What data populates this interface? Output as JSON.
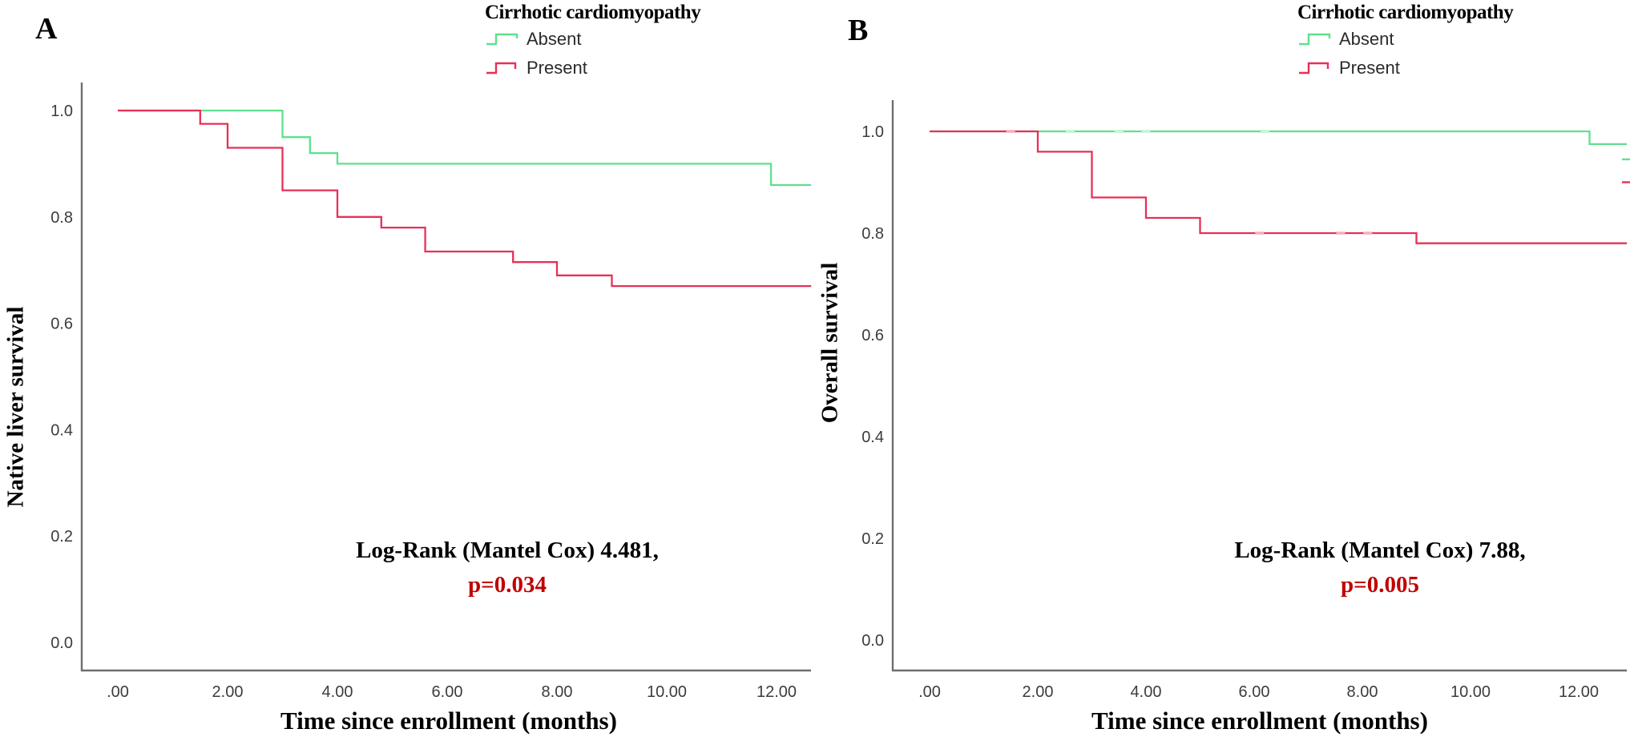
{
  "figure": {
    "background": "#ffffff",
    "colors": {
      "absent": "#5FE08C",
      "absent_light": "#c4f2d6",
      "present": "#E73058",
      "present_light": "#f7afc2",
      "p_value_text": "#C00000",
      "axis_line": "#6e6e6e",
      "tick_text": "#3c3c3c",
      "annotation_text": "#000000"
    },
    "legend": {
      "title": "Cirrhotic cardiomyopathy",
      "items": [
        {
          "label": "Absent",
          "color_key": "absent"
        },
        {
          "label": "Present",
          "color_key": "present"
        }
      ]
    },
    "x_label": "Time since enrollment (months)",
    "x_ticks": [
      ".00",
      "2.00",
      "4.00",
      "6.00",
      "8.00",
      "10.00",
      "12.00"
    ],
    "x_tick_values": [
      0,
      2,
      4,
      6,
      8,
      10,
      12
    ],
    "y_ticks": [
      "1.0",
      "0.8",
      "0.6",
      "0.4",
      "0.2",
      "0.0"
    ],
    "y_tick_values": [
      1.0,
      0.8,
      0.6,
      0.4,
      0.2,
      0.0
    ]
  },
  "panels": [
    {
      "label": "A",
      "y_label": "Native liver survival",
      "annotation": {
        "line1": "Log-Rank (Mantel Cox) 4.481,",
        "line2": "p=0.034"
      }
    },
    {
      "label": "B",
      "y_label": "Overall survival",
      "annotation": {
        "line1": "Log-Rank (Mantel Cox) 7.88,",
        "line2": "p=0.005"
      }
    }
  ],
  "chart_data": [
    {
      "type": "line",
      "subtype": "kaplan-meier-step",
      "panel": "A",
      "title": "Cirrhotic cardiomyopathy",
      "xlabel": "Time since enrollment (months)",
      "ylabel": "Native liver survival",
      "xlim": [
        -0.66,
        12.63
      ],
      "ylim": [
        0,
        1.05
      ],
      "grid": false,
      "legend_position": "top",
      "annotation": "Log-Rank (Mantel Cox) 4.481, p=0.034",
      "series": [
        {
          "name": "Absent",
          "color_key": "absent",
          "x": [
            0,
            3,
            3.5,
            4,
            11.9,
            12.63
          ],
          "y": [
            1.0,
            0.95,
            0.92,
            0.9,
            0.86,
            0.86
          ],
          "censor_x": []
        },
        {
          "name": "Present",
          "color_key": "present",
          "x": [
            0,
            1.5,
            2,
            3,
            4,
            4.8,
            5.6,
            7.2,
            8,
            9,
            12.63
          ],
          "y": [
            1.0,
            0.975,
            0.93,
            0.85,
            0.8,
            0.78,
            0.735,
            0.715,
            0.69,
            0.67,
            0.67
          ],
          "censor_x": []
        }
      ],
      "edge_marks": []
    },
    {
      "type": "line",
      "subtype": "kaplan-meier-step",
      "panel": "B",
      "title": "Cirrhotic cardiomyopathy",
      "xlabel": "Time since enrollment (months)",
      "ylabel": "Overall survival",
      "xlim": [
        -0.68,
        12.89
      ],
      "ylim": [
        0,
        1.05
      ],
      "grid": false,
      "legend_position": "top",
      "annotation": "Log-Rank (Mantel Cox) 7.88, p=0.005",
      "series": [
        {
          "name": "Absent",
          "color_key": "absent",
          "x": [
            0,
            12.2,
            12.89
          ],
          "y": [
            1.0,
            0.975,
            0.975
          ],
          "censor_x": [
            2.6,
            3.5,
            4.0,
            6.2
          ]
        },
        {
          "name": "Present",
          "color_key": "present",
          "x": [
            0,
            2,
            3,
            4,
            5,
            9,
            12.89
          ],
          "y": [
            1.0,
            0.96,
            0.87,
            0.83,
            0.8,
            0.78,
            0.78
          ],
          "censor_x": [
            1.5,
            6.1,
            7.6,
            8.1
          ]
        }
      ],
      "edge_marks": [
        {
          "series": "Absent",
          "t": 12.8,
          "s": 0.945
        },
        {
          "series": "Present",
          "t": 12.8,
          "s": 0.9
        }
      ]
    }
  ]
}
